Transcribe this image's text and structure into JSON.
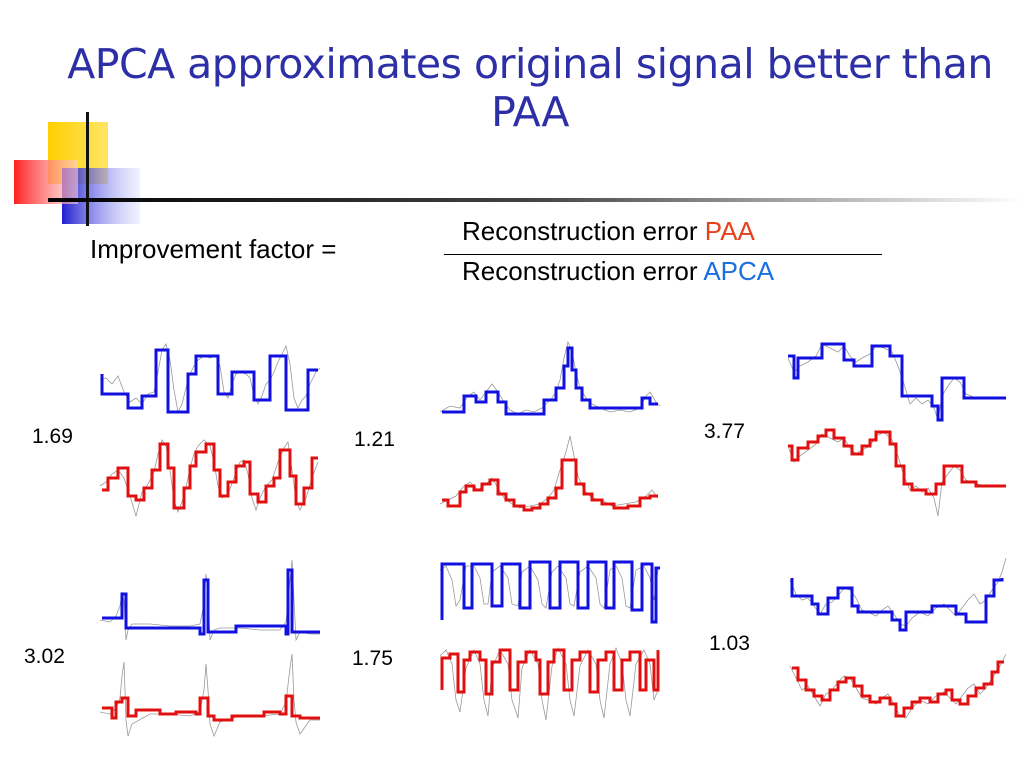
{
  "title": "APCA approximates original signal better than PAA",
  "formula": {
    "lhs": "Improvement factor =",
    "numerator_prefix": "Reconstruction error",
    "numerator_method": "PAA",
    "denominator_prefix": "Reconstruction error",
    "denominator_method": "APCA"
  },
  "colors": {
    "title": "#2d2fa6",
    "paa": "#e8401c",
    "apca": "#1a6fe0",
    "apca_line": "#1010e0",
    "paa_line": "#e01010",
    "signal": "#999999"
  },
  "panels": [
    {
      "factor": "1.69"
    },
    {
      "factor": "1.21"
    },
    {
      "factor": "3.77"
    },
    {
      "factor": "3.02"
    },
    {
      "factor": "1.75"
    },
    {
      "factor": "1.03"
    }
  ]
}
